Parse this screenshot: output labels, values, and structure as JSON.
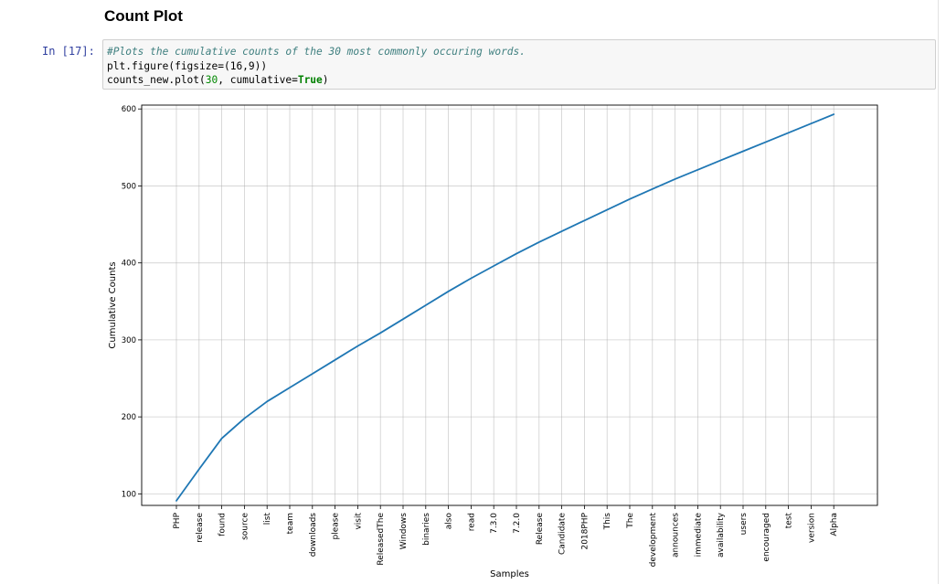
{
  "heading": "Count Plot",
  "cell": {
    "prompt": "In [17]:",
    "code": {
      "comment": "#Plots the cumulative counts of the 30 most commonly occuring words.",
      "line2": "plt.figure(figsize=(16,9))",
      "line3_pre": "counts_new.plot(",
      "line3_num": "30",
      "line3_mid": ", cumulative=",
      "line3_kw": "True",
      "line3_post": ")"
    }
  },
  "chart_data": {
    "type": "line",
    "xlabel": "Samples",
    "ylabel": "Cumulative Counts",
    "ylim": [
      85,
      605
    ],
    "yticks": [
      100,
      200,
      300,
      400,
      500,
      600
    ],
    "grid": true,
    "line_color": "#1f77b4",
    "categories": [
      "PHP",
      "release",
      "found",
      "source",
      "list",
      "team",
      "downloads",
      "please",
      "visit",
      "ReleasedThe",
      "Windows",
      "binaries",
      "also",
      "read",
      "7.3.0",
      "7.2.0",
      "Release",
      "Candidate",
      "2018PHP",
      "This",
      "The",
      "development",
      "announces",
      "immediate",
      "availability",
      "users",
      "encouraged",
      "test",
      "version",
      "Alpha"
    ],
    "values": [
      91,
      132,
      172,
      198,
      220,
      238,
      256,
      274,
      292,
      309,
      327,
      345,
      363,
      380,
      396,
      412,
      427,
      441,
      455,
      469,
      483,
      496,
      509,
      521,
      533,
      545,
      557,
      569,
      581,
      593
    ]
  }
}
